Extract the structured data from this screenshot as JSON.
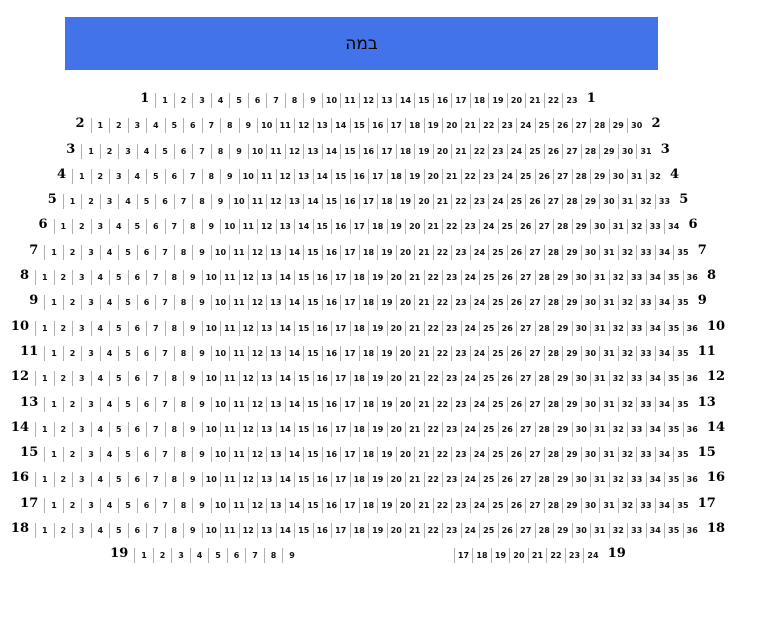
{
  "stage": {
    "label": "במה"
  },
  "colors": {
    "stage_bg": "#4273E8",
    "seat_border": "#B0B0B0",
    "seat_text": "#111111"
  },
  "seatmap": {
    "rows": [
      {
        "label": "1",
        "groups": [
          {
            "start": 1,
            "end": 23
          }
        ]
      },
      {
        "label": "2",
        "groups": [
          {
            "start": 1,
            "end": 30
          }
        ]
      },
      {
        "label": "3",
        "groups": [
          {
            "start": 1,
            "end": 31
          }
        ]
      },
      {
        "label": "4",
        "groups": [
          {
            "start": 1,
            "end": 32
          }
        ]
      },
      {
        "label": "5",
        "groups": [
          {
            "start": 1,
            "end": 33
          }
        ]
      },
      {
        "label": "6",
        "groups": [
          {
            "start": 1,
            "end": 34
          }
        ]
      },
      {
        "label": "7",
        "groups": [
          {
            "start": 1,
            "end": 35
          }
        ]
      },
      {
        "label": "8",
        "groups": [
          {
            "start": 1,
            "end": 36
          }
        ]
      },
      {
        "label": "9",
        "groups": [
          {
            "start": 1,
            "end": 35
          }
        ]
      },
      {
        "label": "10",
        "groups": [
          {
            "start": 1,
            "end": 36
          }
        ]
      },
      {
        "label": "11",
        "groups": [
          {
            "start": 1,
            "end": 35
          }
        ]
      },
      {
        "label": "12",
        "groups": [
          {
            "start": 1,
            "end": 36
          }
        ]
      },
      {
        "label": "13",
        "groups": [
          {
            "start": 1,
            "end": 35
          }
        ]
      },
      {
        "label": "14",
        "groups": [
          {
            "start": 1,
            "end": 36
          }
        ]
      },
      {
        "label": "15",
        "groups": [
          {
            "start": 1,
            "end": 35
          }
        ]
      },
      {
        "label": "16",
        "groups": [
          {
            "start": 1,
            "end": 36
          }
        ]
      },
      {
        "label": "17",
        "groups": [
          {
            "start": 1,
            "end": 35
          }
        ]
      },
      {
        "label": "18",
        "groups": [
          {
            "start": 1,
            "end": 36
          }
        ]
      },
      {
        "label": "19",
        "groups": [
          {
            "start": 1,
            "end": 9
          },
          {
            "start": 17,
            "end": 24,
            "gap_before": true
          }
        ]
      }
    ]
  }
}
